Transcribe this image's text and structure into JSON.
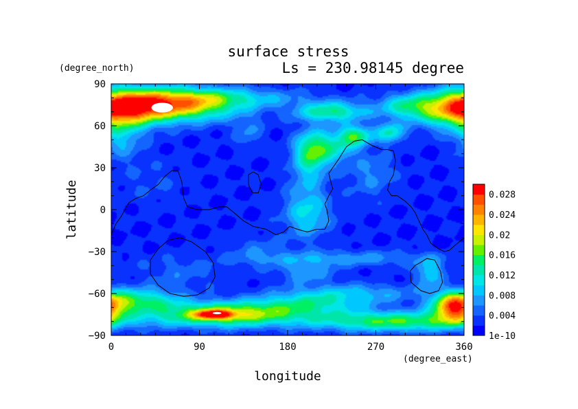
{
  "chart_data": {
    "type": "heatmap",
    "title": "surface stress",
    "subtitle": "Ls = 230.98145 degree",
    "xlabel": "longitude",
    "ylabel": "latitude",
    "xunits": "(degree_east)",
    "yunits": "(degree_north)",
    "xlim": [
      0,
      360
    ],
    "ylim": [
      -90,
      90
    ],
    "xticks": [
      {
        "value": 0,
        "label": "0"
      },
      {
        "value": 90,
        "label": "90"
      },
      {
        "value": 180,
        "label": "180"
      },
      {
        "value": 270,
        "label": "270"
      },
      {
        "value": 360,
        "label": "360"
      }
    ],
    "yticks": [
      {
        "value": 90,
        "label": "90"
      },
      {
        "value": 60,
        "label": "60"
      },
      {
        "value": 30,
        "label": "30"
      },
      {
        "value": 0,
        "label": "0"
      },
      {
        "value": -30,
        "label": "−30"
      },
      {
        "value": -60,
        "label": "−60"
      },
      {
        "value": -90,
        "label": "−90"
      }
    ],
    "colorbar": {
      "ticks": [
        {
          "value": 0,
          "label": "1e-10"
        },
        {
          "value": 0.004,
          "label": "0.004"
        },
        {
          "value": 0.008,
          "label": "0.008"
        },
        {
          "value": 0.012,
          "label": "0.012"
        },
        {
          "value": 0.016,
          "label": "0.016"
        },
        {
          "value": 0.02,
          "label": "0.02"
        },
        {
          "value": 0.024,
          "label": "0.024"
        },
        {
          "value": 0.028,
          "label": "0.028"
        }
      ],
      "vmin": 0,
      "vmax": 0.03,
      "levels": 15,
      "colors": [
        "#0000ff",
        "#0a32ff",
        "#1464ff",
        "#1e96ff",
        "#00c8ff",
        "#00e6e6",
        "#00e6aa",
        "#00f064",
        "#64f000",
        "#c8f000",
        "#ffe600",
        "#ffb400",
        "#ff8200",
        "#ff5000",
        "#ff0000"
      ]
    },
    "blobs": [
      {
        "lon": 180,
        "lat": 0,
        "slon": 400,
        "slat": 200,
        "amp": 0.0022
      },
      {
        "lon": 60,
        "lat": 75,
        "slon": 45,
        "slat": 8,
        "amp": 0.022
      },
      {
        "lon": 15,
        "lat": 72,
        "slon": 25,
        "slat": 10,
        "amp": 0.009
      },
      {
        "lon": 350,
        "lat": 72,
        "slon": 30,
        "slat": 9,
        "amp": 0.015
      },
      {
        "lon": 300,
        "lat": 74,
        "slon": 20,
        "slat": 6,
        "amp": 0.008
      },
      {
        "lon": 225,
        "lat": 70,
        "slon": 25,
        "slat": 5,
        "amp": 0.012
      },
      {
        "lon": 120,
        "lat": 80,
        "slon": 60,
        "slat": 5,
        "amp": 0.006
      },
      {
        "lon": 250,
        "lat": 53,
        "slon": 12,
        "slat": 5,
        "amp": 0.012
      },
      {
        "lon": 285,
        "lat": 55,
        "slon": 10,
        "slat": 5,
        "amp": 0.01
      },
      {
        "lon": 10,
        "lat": 50,
        "slon": 15,
        "slat": 10,
        "amp": 0.006
      },
      {
        "lon": 205,
        "lat": 42,
        "slon": 12,
        "slat": 10,
        "amp": 0.012
      },
      {
        "lon": 230,
        "lat": 45,
        "slon": 14,
        "slat": 8,
        "amp": 0.008
      },
      {
        "lon": 200,
        "lat": 15,
        "slon": 14,
        "slat": 22,
        "amp": 0.005
      },
      {
        "lon": 200,
        "lat": -5,
        "slon": 18,
        "slat": 10,
        "amp": 0.005
      },
      {
        "lon": 265,
        "lat": 25,
        "slon": 18,
        "slat": 12,
        "amp": 0.004
      },
      {
        "lon": 140,
        "lat": 55,
        "slon": 10,
        "slat": 8,
        "amp": 0.004
      },
      {
        "lon": 25,
        "lat": -65,
        "slon": 30,
        "slat": 6,
        "amp": 0.012
      },
      {
        "lon": 115,
        "lat": -75,
        "slon": 50,
        "slat": 6,
        "amp": 0.018
      },
      {
        "lon": 105,
        "lat": -75,
        "slon": 12,
        "slat": 2,
        "amp": 0.018
      },
      {
        "lon": 200,
        "lat": -68,
        "slon": 40,
        "slat": 6,
        "amp": 0.009
      },
      {
        "lon": 290,
        "lat": -80,
        "slon": 60,
        "slat": 5,
        "amp": 0.014
      },
      {
        "lon": 350,
        "lat": -70,
        "slon": 15,
        "slat": 7,
        "amp": 0.022
      },
      {
        "lon": 250,
        "lat": -60,
        "slon": 45,
        "slat": 5,
        "amp": 0.006
      },
      {
        "lon": 240,
        "lat": -35,
        "slon": 70,
        "slat": 4,
        "amp": 0.005
      },
      {
        "lon": 325,
        "lat": -45,
        "slon": 10,
        "slat": 7,
        "amp": 0.008
      },
      {
        "lon": 200,
        "lat": -45,
        "slon": 20,
        "slat": 6,
        "amp": 0.005
      },
      {
        "lon": 70,
        "lat": -45,
        "slon": 30,
        "slat": 8,
        "amp": 0.003
      },
      {
        "lon": 150,
        "lat": -30,
        "slon": 20,
        "slat": 8,
        "amp": 0.003
      },
      {
        "lon": 40,
        "lat": 20,
        "slon": 25,
        "slat": 12,
        "amp": 0.002
      }
    ],
    "saturated_areas": [
      {
        "lon": 52,
        "lat": 73,
        "rlon": 11,
        "rlat": 3.5
      },
      {
        "lon": 108,
        "lat": -74,
        "rlon": 4.5,
        "rlat": 0.8
      }
    ],
    "contours": [
      [
        [
          0,
          -18
        ],
        [
          5,
          -10
        ],
        [
          10,
          -5
        ],
        [
          18,
          5
        ],
        [
          25,
          8
        ],
        [
          33,
          10
        ],
        [
          40,
          14
        ],
        [
          48,
          18
        ],
        [
          55,
          24
        ],
        [
          62,
          28
        ],
        [
          68,
          28
        ],
        [
          72,
          20
        ],
        [
          74,
          8
        ],
        [
          78,
          2
        ],
        [
          88,
          0
        ],
        [
          100,
          0
        ],
        [
          110,
          2
        ],
        [
          118,
          2
        ],
        [
          125,
          -2
        ],
        [
          135,
          -8
        ],
        [
          145,
          -12
        ],
        [
          158,
          -14
        ],
        [
          168,
          -18
        ],
        [
          176,
          -16
        ],
        [
          182,
          -12
        ],
        [
          190,
          -14
        ],
        [
          200,
          -16
        ],
        [
          210,
          -14
        ],
        [
          218,
          -14
        ],
        [
          222,
          -8
        ],
        [
          220,
          0
        ],
        [
          218,
          4
        ],
        [
          222,
          10
        ],
        [
          226,
          15
        ],
        [
          224,
          20
        ],
        [
          222,
          26
        ],
        [
          226,
          30
        ],
        [
          232,
          36
        ],
        [
          240,
          45
        ],
        [
          248,
          49
        ],
        [
          256,
          50
        ],
        [
          266,
          46
        ],
        [
          276,
          43
        ],
        [
          282,
          43
        ],
        [
          288,
          42
        ],
        [
          290,
          35
        ],
        [
          288,
          25
        ],
        [
          284,
          20
        ],
        [
          282,
          14
        ],
        [
          286,
          10
        ],
        [
          292,
          10
        ],
        [
          300,
          6
        ],
        [
          306,
          2
        ],
        [
          310,
          -2
        ],
        [
          314,
          -8
        ],
        [
          318,
          -14
        ],
        [
          322,
          -18
        ],
        [
          326,
          -24
        ],
        [
          334,
          -28
        ],
        [
          340,
          -30
        ],
        [
          345,
          -29
        ],
        [
          350,
          -26
        ],
        [
          360,
          -20
        ]
      ],
      [
        [
          140,
          25
        ],
        [
          145,
          27
        ],
        [
          150,
          25
        ],
        [
          153,
          18
        ],
        [
          150,
          12
        ],
        [
          144,
          12
        ],
        [
          140,
          18
        ],
        [
          140,
          25
        ]
      ],
      [
        [
          48,
          -28
        ],
        [
          58,
          -22
        ],
        [
          70,
          -20
        ],
        [
          82,
          -23
        ],
        [
          96,
          -30
        ],
        [
          104,
          -38
        ],
        [
          106,
          -48
        ],
        [
          100,
          -56
        ],
        [
          88,
          -61
        ],
        [
          74,
          -62
        ],
        [
          60,
          -60
        ],
        [
          48,
          -54
        ],
        [
          40,
          -46
        ],
        [
          40,
          -36
        ],
        [
          48,
          -28
        ]
      ],
      [
        [
          315,
          -38
        ],
        [
          322,
          -35
        ],
        [
          330,
          -36
        ],
        [
          336,
          -44
        ],
        [
          338,
          -52
        ],
        [
          334,
          -58
        ],
        [
          325,
          -60
        ],
        [
          316,
          -58
        ],
        [
          306,
          -52
        ],
        [
          305,
          -44
        ],
        [
          310,
          -40
        ],
        [
          315,
          -38
        ]
      ]
    ]
  }
}
